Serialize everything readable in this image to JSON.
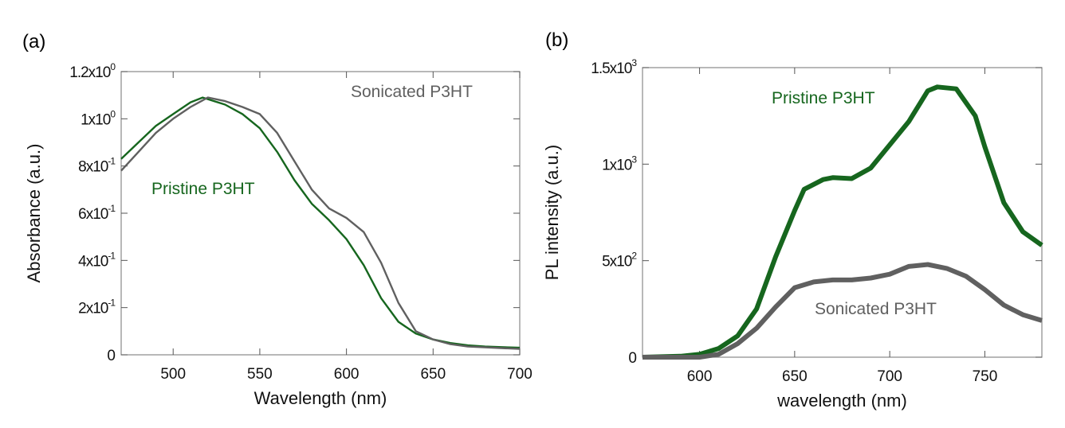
{
  "colors": {
    "pristine": "#16661e",
    "sonicated": "#606060",
    "axis": "#888888"
  },
  "chart_data": [
    {
      "panel_label": "(a)",
      "type": "line",
      "xlabel": "Wavelength (nm)",
      "ylabel": "Absorbance (a.u.)",
      "xlim": [
        470,
        700
      ],
      "ylim": [
        0,
        1.2
      ],
      "xticks": [
        500,
        550,
        600,
        650,
        700
      ],
      "yticks": [
        0,
        0.2,
        0.4,
        0.6,
        0.8,
        1.0,
        1.2
      ],
      "ytick_labels": [
        {
          "base": "0",
          "exp": ""
        },
        {
          "base": "2x10",
          "exp": "-1"
        },
        {
          "base": "4x10",
          "exp": "-1"
        },
        {
          "base": "6x10",
          "exp": "-1"
        },
        {
          "base": "8x10",
          "exp": "-1"
        },
        {
          "base": "1x10",
          "exp": "0"
        },
        {
          "base": "1.2x10",
          "exp": "0"
        }
      ],
      "grid": false,
      "series": [
        {
          "name": "Pristine P3HT",
          "color_key": "pristine",
          "x": [
            470,
            480,
            490,
            500,
            510,
            517,
            530,
            540,
            550,
            560,
            570,
            580,
            590,
            600,
            610,
            620,
            630,
            640,
            650,
            660,
            670,
            680,
            700
          ],
          "y": [
            0.83,
            0.9,
            0.97,
            1.02,
            1.07,
            1.09,
            1.06,
            1.02,
            0.96,
            0.86,
            0.74,
            0.64,
            0.57,
            0.49,
            0.38,
            0.24,
            0.14,
            0.09,
            0.065,
            0.05,
            0.04,
            0.035,
            0.03
          ]
        },
        {
          "name": "Sonicated P3HT",
          "color_key": "sonicated",
          "x": [
            470,
            480,
            490,
            500,
            510,
            520,
            530,
            540,
            550,
            560,
            570,
            580,
            590,
            600,
            610,
            620,
            630,
            640,
            650,
            660,
            670,
            700
          ],
          "y": [
            0.78,
            0.86,
            0.94,
            1.0,
            1.05,
            1.09,
            1.075,
            1.05,
            1.02,
            0.94,
            0.82,
            0.7,
            0.62,
            0.58,
            0.52,
            0.39,
            0.22,
            0.1,
            0.065,
            0.045,
            0.035,
            0.025
          ]
        }
      ]
    },
    {
      "panel_label": "(b)",
      "type": "line",
      "xlabel": "wavelength (nm)",
      "ylabel": "PL intensity (a.u.)",
      "xlim": [
        570,
        780
      ],
      "ylim": [
        0,
        1500
      ],
      "xticks": [
        600,
        650,
        700,
        750
      ],
      "yticks": [
        0,
        500,
        1000,
        1500
      ],
      "ytick_labels": [
        {
          "base": "0",
          "exp": ""
        },
        {
          "base": "5x10",
          "exp": "2"
        },
        {
          "base": "1x10",
          "exp": "3"
        },
        {
          "base": "1.5x10",
          "exp": "3"
        }
      ],
      "grid": false,
      "series": [
        {
          "name": "Pristine P3HT",
          "color_key": "pristine",
          "x": [
            570,
            590,
            600,
            610,
            620,
            630,
            640,
            650,
            655,
            665,
            670,
            680,
            690,
            700,
            710,
            720,
            725,
            735,
            745,
            750,
            760,
            770,
            780
          ],
          "y": [
            0,
            5,
            15,
            45,
            110,
            250,
            520,
            760,
            870,
            920,
            930,
            925,
            980,
            1100,
            1220,
            1380,
            1400,
            1390,
            1250,
            1090,
            800,
            650,
            580
          ]
        },
        {
          "name": "Sonicated P3HT",
          "color_key": "sonicated",
          "x": [
            570,
            600,
            610,
            620,
            630,
            640,
            650,
            660,
            670,
            680,
            690,
            700,
            710,
            720,
            730,
            740,
            750,
            760,
            770,
            780
          ],
          "y": [
            0,
            0,
            15,
            70,
            150,
            260,
            360,
            390,
            400,
            400,
            410,
            430,
            470,
            480,
            460,
            420,
            350,
            270,
            220,
            190
          ]
        }
      ]
    }
  ]
}
